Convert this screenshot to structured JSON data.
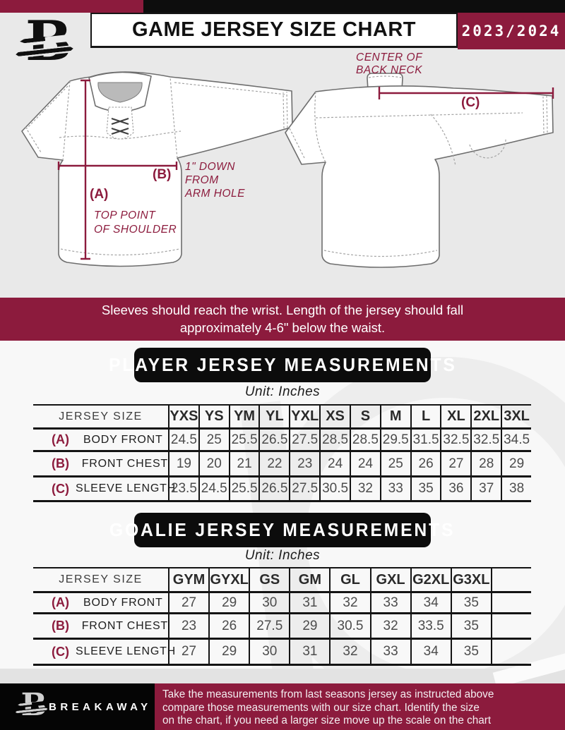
{
  "header": {
    "title": "GAME JERSEY SIZE CHART",
    "season": "2023/2024",
    "logo_letter": "B"
  },
  "diagram": {
    "front": {
      "label_a": "(A)",
      "note_a_line1": "TOP POINT",
      "note_a_line2": "OF SHOULDER",
      "label_b": "(B)",
      "note_b_line1": "1\" DOWN",
      "note_b_line2": "FROM",
      "note_b_line3": "ARM HOLE"
    },
    "back": {
      "label_c": "(C)",
      "note_c_line1": "CENTER OF",
      "note_c_line2": "BACK NECK"
    }
  },
  "banner": {
    "line1": "Sleeves should reach the wrist. Length of the jersey should fall",
    "line2": "approximately 4-6\" below the waist."
  },
  "player_section": {
    "title": "PLAYER JERSEY MEASUREMENTS",
    "unit": "Unit: Inches"
  },
  "goalie_section": {
    "title": "GOALIE JERSEY MEASUREMENTS",
    "unit": "Unit: Inches"
  },
  "player_table": {
    "size_header": "JERSEY SIZE",
    "sizes": [
      "YXS",
      "YS",
      "YM",
      "YL",
      "YXL",
      "XS",
      "S",
      "M",
      "L",
      "XL",
      "2XL",
      "3XL"
    ],
    "rows": [
      {
        "key": "(A)",
        "label": "BODY FRONT",
        "values": [
          "24.5",
          "25",
          "25.5",
          "26.5",
          "27.5",
          "28.5",
          "28.5",
          "29.5",
          "31.5",
          "32.5",
          "32.5",
          "34.5"
        ]
      },
      {
        "key": "(B)",
        "label": "FRONT CHEST",
        "values": [
          "19",
          "20",
          "21",
          "22",
          "23",
          "24",
          "24",
          "25",
          "26",
          "27",
          "28",
          "29"
        ]
      },
      {
        "key": "(C)",
        "label": "SLEEVE LENGTH",
        "values": [
          "23.5",
          "24.5",
          "25.5",
          "26.5",
          "27.5",
          "30.5",
          "32",
          "33",
          "35",
          "36",
          "37",
          "38"
        ]
      }
    ]
  },
  "goalie_table": {
    "size_header": "JERSEY SIZE",
    "sizes": [
      "GYM",
      "GYXL",
      "GS",
      "GM",
      "GL",
      "GXL",
      "G2XL",
      "G3XL",
      ""
    ],
    "rows": [
      {
        "key": "(A)",
        "label": "BODY FRONT",
        "values": [
          "27",
          "29",
          "30",
          "31",
          "32",
          "33",
          "34",
          "35",
          ""
        ]
      },
      {
        "key": "(B)",
        "label": "FRONT CHEST",
        "values": [
          "23",
          "26",
          "27.5",
          "29",
          "30.5",
          "32",
          "33.5",
          "35",
          ""
        ]
      },
      {
        "key": "(C)",
        "label": "SLEEVE LENGTH",
        "values": [
          "27",
          "29",
          "30",
          "31",
          "32",
          "33",
          "34",
          "35",
          ""
        ]
      }
    ]
  },
  "footer": {
    "brand": "BREAKAWAY",
    "note_lines": [
      "Take the measurements from last seasons jersey as instructed above",
      "compare those measurements  with our size chart. Identify the size",
      "on the chart, if you need a larger size move up the scale on the chart"
    ]
  },
  "colors": {
    "maroon": "#8C1B3D",
    "black": "#0d0d0d",
    "light_gray": "#e9e9e9"
  }
}
